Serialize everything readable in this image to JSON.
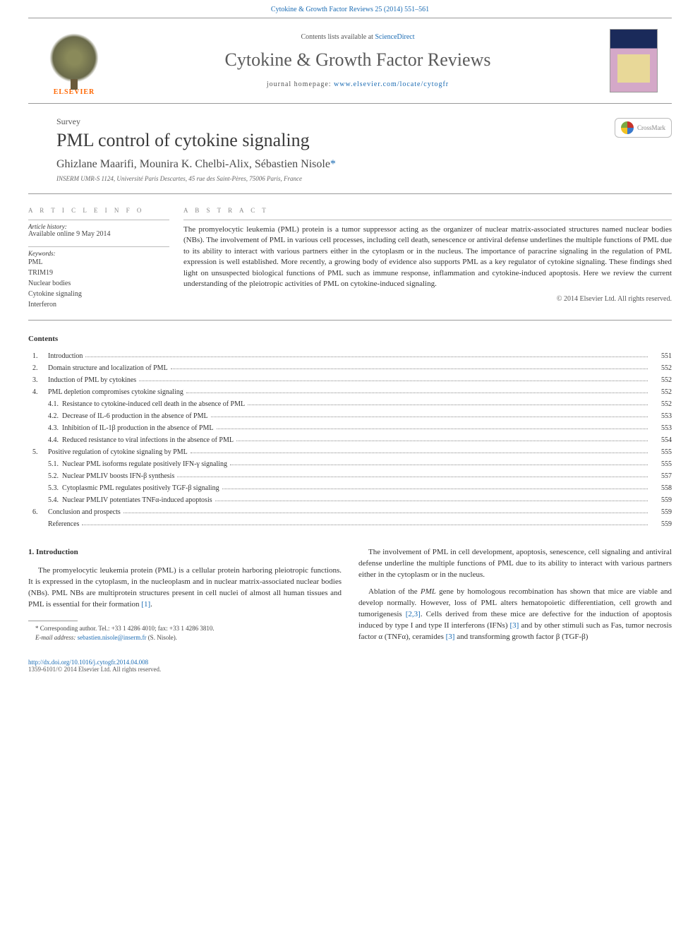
{
  "header": {
    "top_citation": "Cytokine & Growth Factor Reviews 25 (2014) 551–561",
    "contents_available": "Contents lists available at ",
    "sciencedirect": "ScienceDirect",
    "journal_name": "Cytokine & Growth Factor Reviews",
    "homepage_label": "journal homepage: ",
    "homepage_url": "www.elsevier.com/locate/cytogfr",
    "elsevier": "ELSEVIER"
  },
  "article": {
    "type": "Survey",
    "title": "PML control of cytokine signaling",
    "authors": "Ghizlane Maarifi, Mounira K. Chelbi-Alix, Sébastien Nisole",
    "corresponding_mark": "*",
    "affiliation": "INSERM UMR-S 1124, Université Paris Descartes, 45 rue des Saint-Pères, 75006 Paris, France",
    "crossmark": "CrossMark"
  },
  "info": {
    "label": "A R T I C L E   I N F O",
    "history_title": "Article history:",
    "history_text": "Available online 9 May 2014",
    "keywords_title": "Keywords:",
    "keywords": [
      "PML",
      "TRIM19",
      "Nuclear bodies",
      "Cytokine signaling",
      "Interferon"
    ]
  },
  "abstract": {
    "label": "A B S T R A C T",
    "text": "The promyelocytic leukemia (PML) protein is a tumor suppressor acting as the organizer of nuclear matrix-associated structures named nuclear bodies (NBs). The involvement of PML in various cell processes, including cell death, senescence or antiviral defense underlines the multiple functions of PML due to its ability to interact with various partners either in the cytoplasm or in the nucleus. The importance of paracrine signaling in the regulation of PML expression is well established. More recently, a growing body of evidence also supports PML as a key regulator of cytokine signaling. These findings shed light on unsuspected biological functions of PML such as immune response, inflammation and cytokine-induced apoptosis. Here we review the current understanding of the pleiotropic activities of PML on cytokine-induced signaling.",
    "copyright": "© 2014 Elsevier Ltd. All rights reserved."
  },
  "contents": {
    "heading": "Contents",
    "items": [
      {
        "num": "1.",
        "title": "Introduction",
        "page": "551"
      },
      {
        "num": "2.",
        "title": "Domain structure and localization of PML",
        "page": "552"
      },
      {
        "num": "3.",
        "title": "Induction of PML by cytokines",
        "page": "552"
      },
      {
        "num": "4.",
        "title": "PML depletion compromises cytokine signaling",
        "page": "552"
      },
      {
        "sub": "4.1.",
        "title": "Resistance to cytokine-induced cell death in the absence of PML",
        "page": "552"
      },
      {
        "sub": "4.2.",
        "title": "Decrease of IL-6 production in the absence of PML",
        "page": "553"
      },
      {
        "sub": "4.3.",
        "title": "Inhibition of IL-1β production in the absence of PML",
        "page": "553"
      },
      {
        "sub": "4.4.",
        "title": "Reduced resistance to viral infections in the absence of PML",
        "page": "554"
      },
      {
        "num": "5.",
        "title": "Positive regulation of cytokine signaling by PML",
        "page": "555"
      },
      {
        "sub": "5.1.",
        "title": "Nuclear PML isoforms regulate positively IFN-γ signaling",
        "page": "555"
      },
      {
        "sub": "5.2.",
        "title": "Nuclear PMLIV boosts IFN-β synthesis",
        "page": "557"
      },
      {
        "sub": "5.3.",
        "title": "Cytoplasmic PML regulates positively TGF-β signaling",
        "page": "558"
      },
      {
        "sub": "5.4.",
        "title": "Nuclear PMLIV potentiates TNFα-induced apoptosis",
        "page": "559"
      },
      {
        "num": "6.",
        "title": "Conclusion and prospects",
        "page": "559"
      },
      {
        "num": "",
        "title": "References",
        "page": "559"
      }
    ]
  },
  "body": {
    "intro_heading": "1. Introduction",
    "left_p1": "The promyelocytic leukemia protein (PML) is a cellular protein harboring pleiotropic functions. It is expressed in the cytoplasm, in the nucleoplasm and in nuclear matrix-associated nuclear bodies (NBs). PML NBs are multiprotein structures present in cell nuclei of almost all human tissues and PML is essential for their formation ",
    "left_ref1": "[1]",
    "left_p1_end": ".",
    "right_p1": "The involvement of PML in cell development, apoptosis, senescence, cell signaling and antiviral defense underline the multiple functions of PML due to its ability to interact with various partners either in the cytoplasm or in the nucleus.",
    "right_p2a": "Ablation of the ",
    "right_p2_pml": "PML",
    "right_p2b": " gene by homologous recombination has shown that mice are viable and develop normally. However, loss of PML alters hematopoietic differentiation, cell growth and tumorigenesis ",
    "right_ref23": "[2,3]",
    "right_p2c": ". Cells derived from these mice are defective for the induction of apoptosis induced by type I and type II interferons (IFNs) ",
    "right_ref3a": "[3]",
    "right_p2d": " and by other stimuli such as Fas, tumor necrosis factor α (TNFα), ceramides ",
    "right_ref3b": "[3]",
    "right_p2e": " and transforming growth factor β (TGF-β)"
  },
  "footnote": {
    "corresponding": "* Corresponding author. Tel.: +33 1 4286 4010; fax: +33 1 4286 3810.",
    "email_label": "E-mail address: ",
    "email": "sebastien.nisole@inserm.fr",
    "email_suffix": " (S. Nisole)."
  },
  "doi": {
    "url": "http://dx.doi.org/10.1016/j.cytogfr.2014.04.008",
    "issn_copy": "1359-6101/© 2014 Elsevier Ltd. All rights reserved."
  },
  "colors": {
    "link": "#1a6bb3",
    "text": "#333333",
    "muted": "#888888",
    "elsevier_orange": "#ff6600"
  },
  "typography": {
    "body_pt": 11,
    "title_pt": 26,
    "journal_pt": 26,
    "authors_pt": 16,
    "small_pt": 10,
    "tiny_pt": 9
  }
}
